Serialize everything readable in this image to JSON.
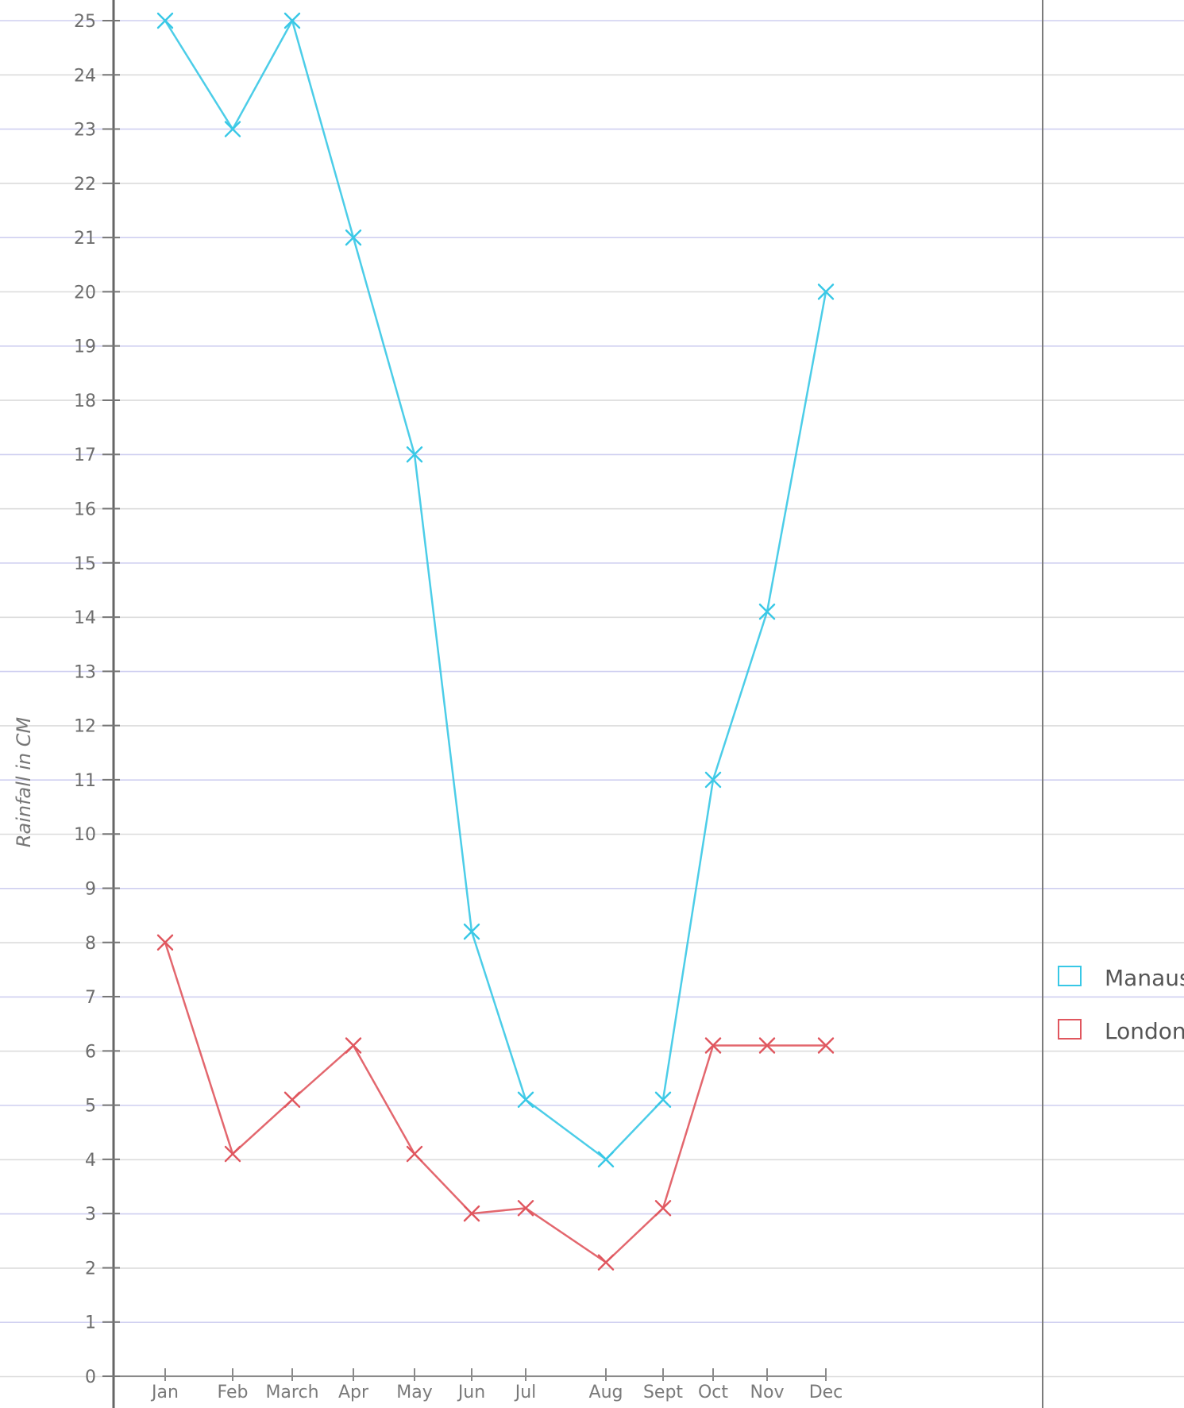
{
  "chart_data": {
    "type": "line",
    "title": "",
    "xlabel": "",
    "ylabel": "Rainfall in CM",
    "categories": [
      "Jan",
      "Feb",
      "March",
      "Apr",
      "May",
      "Jun",
      "Jul",
      "Aug",
      "Sept",
      "Oct",
      "Nov",
      "Dec"
    ],
    "ylim": [
      0,
      25
    ],
    "yticks": [
      "0",
      "1",
      "2",
      "3",
      "4",
      "5",
      "6",
      "7",
      "8",
      "9",
      "10",
      "11",
      "12",
      "13",
      "14",
      "15",
      "16",
      "17",
      "18",
      "19",
      "20",
      "21",
      "22",
      "23",
      "24",
      "25"
    ],
    "grid": true,
    "legend_position": "right",
    "series": [
      {
        "name": "Manaus",
        "color": "#38c8e6",
        "points": [
          {
            "x": "Jan",
            "y": 25
          },
          {
            "x": "Feb",
            "y": 23
          },
          {
            "x": "March",
            "y": 25
          },
          {
            "x": "Apr",
            "y": 21
          },
          {
            "x": "May",
            "y": 17
          },
          {
            "x": "Jun",
            "y": 8.2
          },
          {
            "x": "Jul",
            "y": 5.1
          },
          {
            "x": "Aug",
            "y": 4
          },
          {
            "x": "Sept",
            "y": 5.1
          },
          {
            "x": "Oct",
            "y": 11
          },
          {
            "x": "Nov",
            "y": 14.1
          },
          {
            "x": "Dec",
            "y": 20
          }
        ]
      },
      {
        "name": "London",
        "color": "#e0565e",
        "points": [
          {
            "x": "Jan",
            "y": 8
          },
          {
            "x": "Feb",
            "y": 4.1
          },
          {
            "x": "March",
            "y": 5.1
          },
          {
            "x": "Apr",
            "y": 6.1
          },
          {
            "x": "May",
            "y": 4.1
          },
          {
            "x": "Jun",
            "y": 3
          },
          {
            "x": "Jul",
            "y": 3.1
          },
          {
            "x": "Aug",
            "y": 2.1
          },
          {
            "x": "Sept",
            "y": 3.1
          },
          {
            "x": "Oct",
            "y": 6.1
          },
          {
            "x": "Nov",
            "y": 6.1
          },
          {
            "x": "Dec",
            "y": 6.1
          }
        ]
      }
    ],
    "legend": [
      {
        "label": "Manaus",
        "color": "#38c8e6"
      },
      {
        "label": "London",
        "color": "#e0565e"
      }
    ]
  }
}
